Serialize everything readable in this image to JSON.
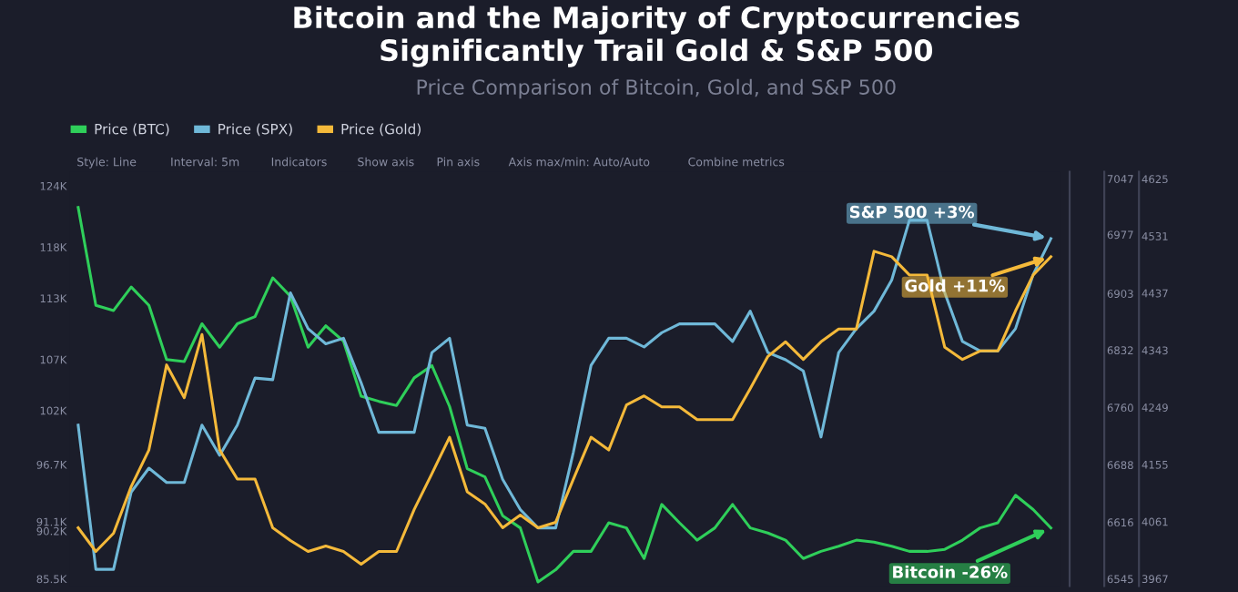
{
  "chart_data": {
    "type": "line",
    "title": "Bitcoin and the Majority of Cryptocurrencies\nSignificantly Trail Gold & S&P 500",
    "subtitle": "Price Comparison of Bitcoin, Gold, and S&P 500",
    "categories": [
      null,
      null,
      null,
      null,
      null,
      null,
      null,
      null,
      null,
      null,
      null,
      null,
      null,
      null,
      null,
      null,
      null,
      null,
      null,
      null,
      null,
      null,
      null,
      null,
      null,
      null,
      null,
      null,
      null,
      null,
      null,
      null,
      null,
      null,
      null,
      null,
      null,
      null,
      null,
      null,
      null,
      null,
      null,
      null,
      null,
      null,
      null,
      null,
      null,
      null,
      null,
      null,
      null,
      null,
      null,
      null
    ],
    "series": [
      {
        "name": "Price (BTC)",
        "color": "#2fcf5a",
        "axis": "y",
        "values": [
          121.9,
          112.3,
          111.8,
          114.1,
          112.3,
          107.0,
          106.8,
          110.5,
          108.2,
          110.5,
          111.2,
          115.0,
          113.2,
          108.2,
          110.3,
          108.8,
          103.4,
          102.9,
          102.5,
          105.2,
          106.4,
          102.4,
          96.3,
          95.5,
          91.7,
          90.5,
          85.2,
          86.4,
          88.2,
          88.2,
          91.0,
          90.5,
          87.5,
          92.8,
          91.0,
          89.3,
          90.5,
          92.8,
          90.5,
          90.0,
          89.3,
          87.5,
          88.2,
          88.7,
          89.3,
          89.1,
          88.7,
          88.2,
          88.2,
          88.4,
          89.3,
          90.5,
          91.0,
          93.7,
          92.3,
          90.5
        ]
      },
      {
        "name": "Price (SPX)",
        "color": "#6fb8d8",
        "axis": "y2",
        "values": [
          6738,
          6557,
          6557,
          6654,
          6684,
          6666,
          6666,
          6738,
          6700,
          6738,
          6797,
          6795,
          6904,
          6859,
          6840,
          6847,
          6791,
          6729,
          6729,
          6729,
          6829,
          6847,
          6738,
          6734,
          6670,
          6632,
          6609,
          6609,
          6704,
          6813,
          6847,
          6847,
          6836,
          6854,
          6865,
          6865,
          6865,
          6843,
          6881,
          6829,
          6820,
          6806,
          6723,
          6829,
          6859,
          6881,
          6920,
          6995,
          6995,
          6904,
          6843,
          6831,
          6831,
          6859,
          6927,
          6972
        ]
      },
      {
        "name": "Price (Gold)",
        "color": "#f4b93a",
        "axis": "y3",
        "values": [
          4051,
          4012,
          4042,
          4119,
          4179,
          4319,
          4265,
          4369,
          4179,
          4131,
          4131,
          4051,
          4030,
          4012,
          4021,
          4012,
          3991,
          4012,
          4012,
          4081,
          4140,
          4200,
          4110,
          4090,
          4051,
          4072,
          4051,
          4060,
          4131,
          4200,
          4179,
          4253,
          4268,
          4250,
          4250,
          4229,
          4229,
          4229,
          4280,
          4333,
          4357,
          4328,
          4357,
          4378,
          4378,
          4506,
          4497,
          4467,
          4467,
          4348,
          4328,
          4342,
          4342,
          4408,
          4467,
          4497
        ]
      }
    ],
    "ylim": [
      84.8,
      125.4
    ],
    "yticks": [
      {
        "value": 85.5,
        "label": "85.5K"
      },
      {
        "value": 90.2,
        "label": "90.2K"
      },
      {
        "value": 91.1,
        "label": "91.1K"
      },
      {
        "value": 96.7,
        "label": "96.7K"
      },
      {
        "value": 102,
        "label": "102K"
      },
      {
        "value": 107,
        "label": "107K"
      },
      {
        "value": 113,
        "label": "113K"
      },
      {
        "value": 118,
        "label": "118K"
      },
      {
        "value": 124,
        "label": "124K"
      }
    ],
    "y2lim": [
      6536,
      7056
    ],
    "y2ticks": [
      6545,
      6616,
      6688,
      6760,
      6832,
      6903,
      6977,
      7047
    ],
    "y3lim": [
      3955,
      4637
    ],
    "y3ticks": [
      3967,
      4061,
      4155,
      4249,
      4343,
      4437,
      4531,
      4625
    ],
    "legend": "top left",
    "grid": false,
    "annotations": [
      "Style: Line",
      "Interval: 5m",
      "Indicators",
      "Show axis",
      "Pin axis",
      "Axis max/min: Auto/Auto",
      "Combine metrics",
      "Bitcoin -26%",
      "S&P 500 +3%",
      "Gold +11%"
    ]
  }
}
